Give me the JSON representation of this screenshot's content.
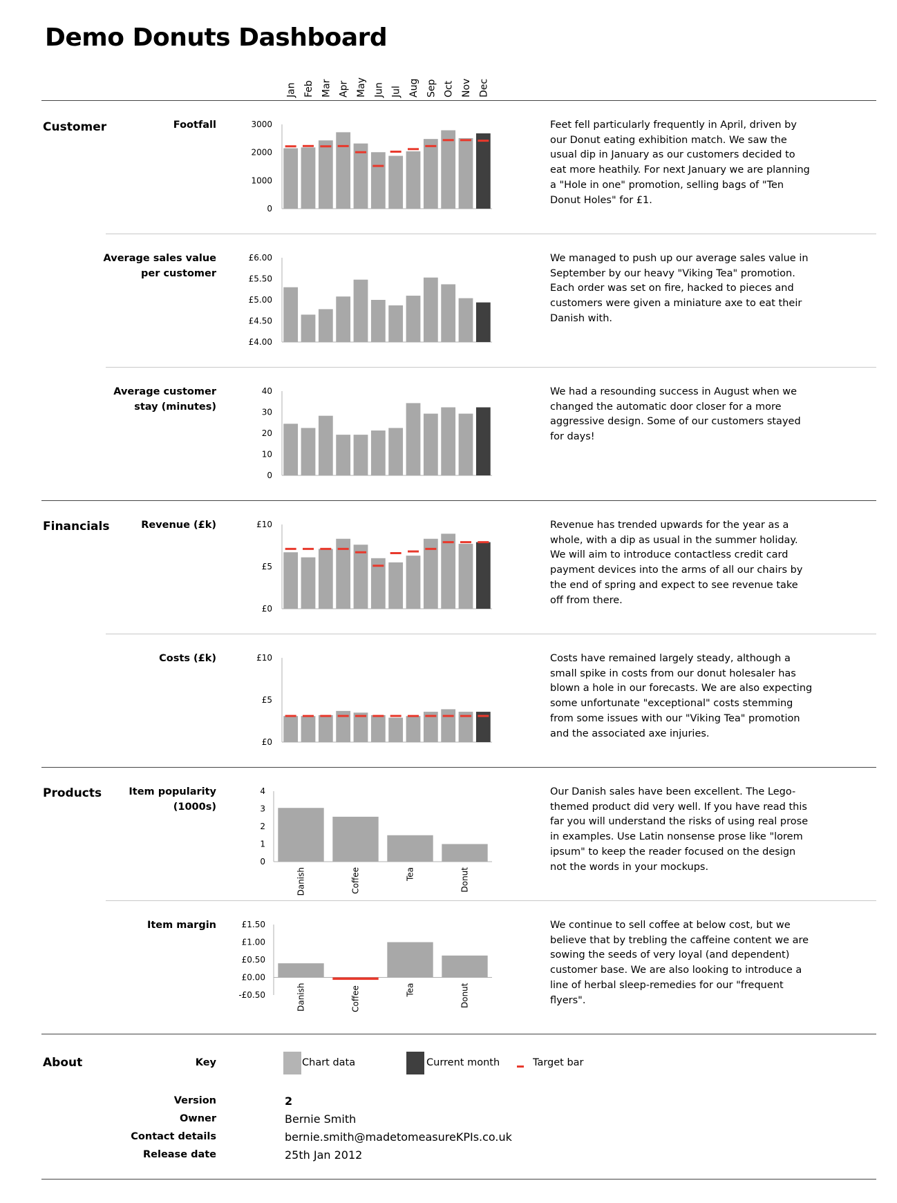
{
  "title": "Demo Donuts Dashboard",
  "months": [
    "Jan",
    "Feb",
    "Mar",
    "Apr",
    "May",
    "Jun",
    "Jul",
    "Aug",
    "Sep",
    "Oct",
    "Nov",
    "Dec"
  ],
  "colors": {
    "bar": "#a8a8a8",
    "current": "#3f3f3f",
    "target": "#e8392c"
  },
  "sections": {
    "customer": "Customer",
    "financials": "Financials",
    "products": "Products",
    "about": "About"
  },
  "chart_data": [
    {
      "id": "footfall",
      "type": "bar",
      "title": "Footfall",
      "categories": [
        "Jan",
        "Feb",
        "Mar",
        "Apr",
        "May",
        "Jun",
        "Jul",
        "Aug",
        "Sep",
        "Oct",
        "Nov",
        "Dec"
      ],
      "values": [
        2150,
        2180,
        2430,
        2720,
        2320,
        2010,
        1880,
        2040,
        2480,
        2790,
        2510,
        2680
      ],
      "target": [
        2220,
        2230,
        2220,
        2230,
        2010,
        1520,
        2030,
        2120,
        2230,
        2440,
        2440,
        2420
      ],
      "ylim": [
        0,
        3000
      ],
      "yticks": [
        0,
        1000,
        2000,
        3000
      ],
      "ytick_labels": [
        "0",
        "1000",
        "2000",
        "3000"
      ],
      "commentary": "Feet fell particularly frequently in April, driven by our Donut eating exhibition match. We saw the usual dip in January as our customers decided to eat more heathily. For next January we are planning a \"Hole in one\" promotion, selling bags of \"Ten Donut Holes\" for £1."
    },
    {
      "id": "avg-sales",
      "type": "bar",
      "title": "Average sales value per customer",
      "categories": [
        "Jan",
        "Feb",
        "Mar",
        "Apr",
        "May",
        "Jun",
        "Jul",
        "Aug",
        "Sep",
        "Oct",
        "Nov",
        "Dec"
      ],
      "values": [
        5.3,
        4.65,
        4.78,
        5.08,
        5.48,
        5.0,
        4.87,
        5.1,
        5.53,
        5.37,
        5.04,
        4.94
      ],
      "ylim": [
        4.0,
        6.0
      ],
      "yticks": [
        4.0,
        4.5,
        5.0,
        5.5,
        6.0
      ],
      "ytick_labels": [
        "£4.00",
        "£4.50",
        "£5.00",
        "£5.50",
        "£6.00"
      ],
      "commentary": "We managed to push up our average sales value in September by our heavy \"Viking Tea\" promotion. Each order was set on fire, hacked to pieces and customers were given a miniature axe to eat their Danish with."
    },
    {
      "id": "avg-stay",
      "type": "bar",
      "title": "Average customer stay (minutes)",
      "categories": [
        "Jan",
        "Feb",
        "Mar",
        "Apr",
        "May",
        "Jun",
        "Jul",
        "Aug",
        "Sep",
        "Oct",
        "Nov",
        "Dec"
      ],
      "values": [
        24.5,
        22.5,
        28.3,
        19.3,
        19.3,
        21.3,
        22.5,
        34.3,
        29.3,
        32.3,
        29.3,
        32.3
      ],
      "ylim": [
        0,
        40
      ],
      "yticks": [
        0,
        10,
        20,
        30,
        40
      ],
      "ytick_labels": [
        "0",
        "10",
        "20",
        "30",
        "40"
      ],
      "commentary": "We had a resounding success in August when we changed the automatic door closer for a more aggressive design. Some of our customers stayed for days!"
    },
    {
      "id": "revenue",
      "type": "bar",
      "title": "Revenue (£k)",
      "categories": [
        "Jan",
        "Feb",
        "Mar",
        "Apr",
        "May",
        "Jun",
        "Jul",
        "Aug",
        "Sep",
        "Oct",
        "Nov",
        "Dec"
      ],
      "values": [
        6.7,
        6.1,
        7.1,
        8.3,
        7.6,
        6.0,
        5.5,
        6.3,
        8.3,
        8.9,
        7.7,
        7.9
      ],
      "target": [
        7.1,
        7.1,
        7.1,
        7.1,
        6.7,
        5.1,
        6.6,
        6.8,
        7.1,
        7.9,
        7.9,
        7.9
      ],
      "ylim": [
        0,
        10
      ],
      "yticks": [
        0,
        5,
        10
      ],
      "ytick_labels": [
        "£0",
        "£5",
        "£10"
      ],
      "commentary": "Revenue has trended upwards for the year as a whole, with a dip as usual in the summer holiday. We will aim to introduce contactless credit card payment devices into the arms of all our chairs by the end of spring and expect to see revenue take off from there."
    },
    {
      "id": "costs",
      "type": "bar",
      "title": "Costs (£k)",
      "categories": [
        "Jan",
        "Feb",
        "Mar",
        "Apr",
        "May",
        "Jun",
        "Jul",
        "Aug",
        "Sep",
        "Oct",
        "Nov",
        "Dec"
      ],
      "values": [
        3.1,
        3.1,
        3.2,
        3.7,
        3.5,
        3.2,
        2.9,
        3.1,
        3.6,
        3.9,
        3.6,
        3.6
      ],
      "target": [
        3.1,
        3.1,
        3.1,
        3.1,
        3.1,
        3.1,
        3.1,
        3.1,
        3.1,
        3.1,
        3.1,
        3.1
      ],
      "ylim": [
        0,
        10
      ],
      "yticks": [
        0,
        5,
        10
      ],
      "ytick_labels": [
        "£0",
        "£5",
        "£10"
      ],
      "commentary": "Costs have remained largely steady, although a small spike in costs from our donut holesaler has blown a hole in our forecasts. We are also expecting some unfortunate \"exceptional\" costs stemming from some issues with our \"Viking Tea\" promotion and the associated axe injuries."
    },
    {
      "id": "popularity",
      "type": "bar",
      "title": "Item popularity (1000s)",
      "categories": [
        "Danish",
        "Coffee",
        "Tea",
        "Donut"
      ],
      "values": [
        3.05,
        2.55,
        1.5,
        1.0
      ],
      "ylim": [
        0,
        4
      ],
      "yticks": [
        0,
        1,
        2,
        3,
        4
      ],
      "ytick_labels": [
        "0",
        "1",
        "2",
        "3",
        "4"
      ],
      "commentary": "Our Danish sales have been excellent. The Lego-themed product did very well. If you have read this far you will understand the risks of using real prose in examples. Use Latin nonsense prose like \"lorem ipsum\" to keep the reader focused on the design not the words in your mockups."
    },
    {
      "id": "margin",
      "type": "bar",
      "title": "Item margin",
      "categories": [
        "Danish",
        "Coffee",
        "Tea",
        "Donut"
      ],
      "values": [
        0.4,
        -0.07,
        1.0,
        0.62
      ],
      "ylim": [
        -0.5,
        1.5
      ],
      "yticks": [
        -0.5,
        0.0,
        0.5,
        1.0,
        1.5
      ],
      "ytick_labels": [
        "-£0.50",
        "£0.00",
        "£0.50",
        "£1.00",
        "£1.50"
      ],
      "commentary": "We continue to sell coffee at below cost, but we believe that by trebling the caffeine content we are sowing the seeds of very loyal (and dependent) customer base. We are also looking to introduce a line of herbal sleep-remedies for our \"frequent flyers\"."
    }
  ],
  "about": {
    "key_label": "Key",
    "key_items": [
      "Chart data",
      "Current month",
      "Target bar"
    ],
    "fields": [
      {
        "label": "Version",
        "value": "2"
      },
      {
        "label": "Owner",
        "value": "Bernie Smith"
      },
      {
        "label": "Contact details",
        "value": "bernie.smith@madetomeasureKPIs.co.uk"
      },
      {
        "label": "Release date",
        "value": "25th Jan 2012"
      }
    ]
  }
}
